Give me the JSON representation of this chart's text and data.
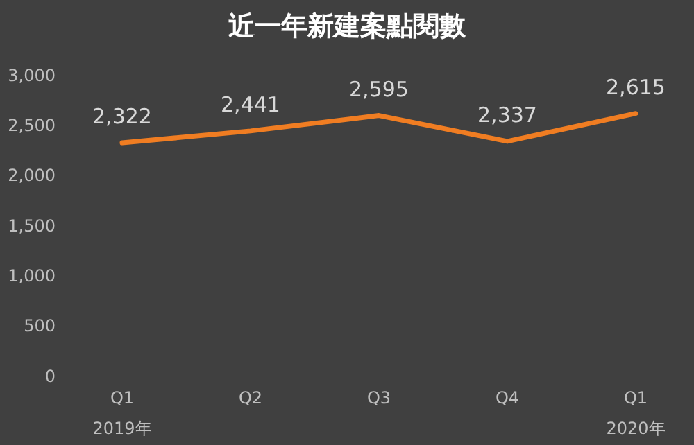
{
  "chart_data": {
    "type": "line",
    "title": "近一年新建案點閱數",
    "categories": [
      "Q1\n2019年",
      "Q2",
      "Q3",
      "Q4",
      "Q1\n2020年"
    ],
    "series": [
      {
        "color": "#f07d22",
        "values": [
          2322,
          2441,
          2595,
          2337,
          2615
        ],
        "value_labels": [
          "2,322",
          "2,441",
          "2,595",
          "2,337",
          "2,615"
        ]
      }
    ],
    "ylim": [
      0,
      3000
    ],
    "yticks": [
      0,
      500,
      {
        "value": 1000,
        "label": "1,000"
      },
      {
        "value": 1500,
        "label": "1,500"
      },
      {
        "value": 2000,
        "label": "2,000"
      },
      {
        "value": 2500,
        "label": "2,500"
      },
      {
        "value": 3000,
        "label": "3,000"
      }
    ],
    "grid": false,
    "legend": false,
    "marker": "none",
    "line_style": "solid"
  }
}
